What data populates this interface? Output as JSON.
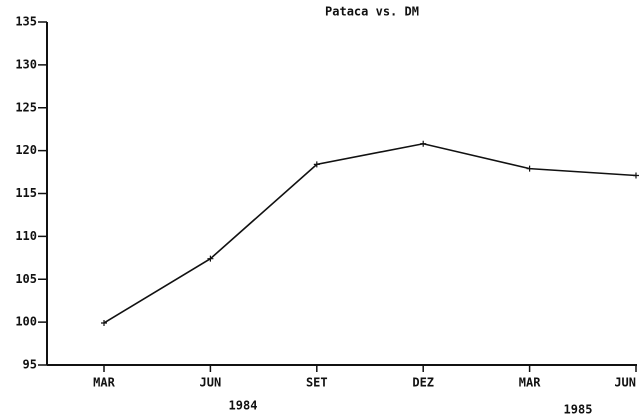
{
  "chart_data": {
    "type": "line",
    "title": "Pataca vs. DM",
    "categories": [
      "MAR",
      "JUN",
      "SET",
      "DEZ",
      "MAR",
      "JUN"
    ],
    "series": [
      {
        "name": "Pataca vs. DM",
        "color": "#111111",
        "values": [
          99.9,
          107.4,
          118.4,
          120.8,
          117.9,
          117.1
        ]
      }
    ],
    "ylim": [
      95,
      135
    ],
    "yticks": [
      95,
      100,
      105,
      110,
      115,
      120,
      125,
      130,
      135
    ],
    "annotations": [
      "1984",
      "1985"
    ],
    "grid": false
  }
}
